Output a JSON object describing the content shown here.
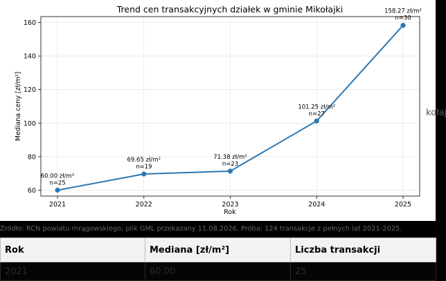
{
  "chart_data": {
    "type": "line",
    "title": "Trend cen transakcyjnych działek w gminie Mikołajki",
    "xlabel": "Rok",
    "ylabel": "Mediana ceny [zł/m²]",
    "x": [
      "2021",
      "2022",
      "2023",
      "2024",
      "2025"
    ],
    "series": [
      {
        "values": [
          60.0,
          69.65,
          71.38,
          101.25,
          158.27
        ]
      }
    ],
    "labels": [
      "60.00 zł/m²",
      "69.65 zł/m²",
      "71.38 zł/m²",
      "101.25 zł/m²",
      "158.27 zł/m²"
    ],
    "counts": [
      "n=25",
      "n=19",
      "n=23",
      "n=27",
      "n=30"
    ],
    "yticks": [
      "60",
      "80",
      "100",
      "120",
      "140",
      "160"
    ],
    "ytick_values": [
      60,
      80,
      100,
      120,
      140,
      160
    ],
    "ylim": [
      56.5,
      163.5
    ],
    "grid": true,
    "line_color": "#2a78b5"
  },
  "side_text": "kołaj",
  "source_note": "Źródło: RCN powiatu mrągowskiego, plik GML przekazany 11.08.2026. Próba: 124 transakcje z pełnych lat 2021-2025.",
  "table": {
    "headers": [
      "Rok",
      "Mediana [zł/m²]",
      "Liczba transakcji"
    ],
    "rows": [
      [
        "2021",
        "60.00",
        "25"
      ]
    ]
  }
}
